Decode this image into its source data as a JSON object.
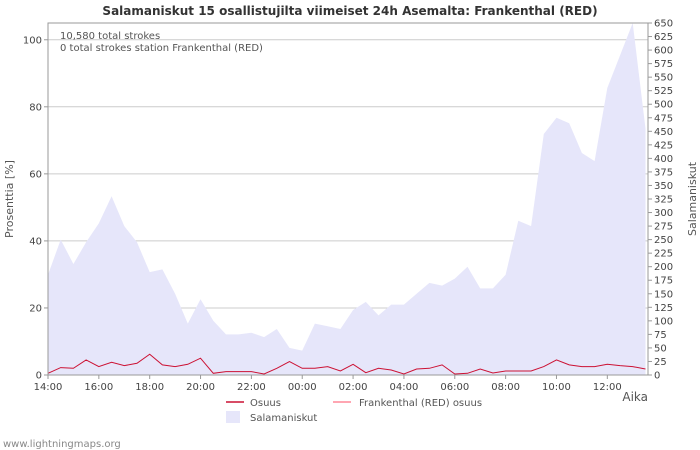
{
  "chart_data": {
    "type": "area",
    "title": "Salamaniskut 15 osallistujilta viimeiset 24h Asemalta: Frankenthal (RED)",
    "annotations": [
      "10,580 total strokes",
      "0 total strokes station Frankenthal (RED)"
    ],
    "ylabel_left": "Prosenttia   [%]",
    "ylabel_right": "Salamaniskut",
    "xlabel": "Aika",
    "ylim_left": [
      0,
      105
    ],
    "ylim_right": [
      0,
      650
    ],
    "yticks_left": [
      "0",
      "20",
      "40",
      "60",
      "80",
      "100"
    ],
    "yticks_right": [
      "0",
      "25",
      "50",
      "75",
      "100",
      "125",
      "150",
      "175",
      "200",
      "225",
      "250",
      "275",
      "300",
      "325",
      "350",
      "375",
      "400",
      "425",
      "450",
      "475",
      "500",
      "525",
      "550",
      "575",
      "600",
      "625",
      "650"
    ],
    "x_range_hours": [
      0,
      23.6
    ],
    "xticks": [
      {
        "label": "14:00",
        "hour": 0
      },
      {
        "label": "16:00",
        "hour": 2
      },
      {
        "label": "18:00",
        "hour": 4
      },
      {
        "label": "20:00",
        "hour": 6
      },
      {
        "label": "22:00",
        "hour": 8
      },
      {
        "label": "00:00",
        "hour": 10
      },
      {
        "label": "02:00",
        "hour": 12
      },
      {
        "label": "04:00",
        "hour": 14
      },
      {
        "label": "06:00",
        "hour": 16
      },
      {
        "label": "08:00",
        "hour": 18
      },
      {
        "label": "10:00",
        "hour": 20
      },
      {
        "label": "12:00",
        "hour": 22
      }
    ],
    "x_hours": [
      0,
      0.5,
      1,
      1.5,
      2,
      2.5,
      3,
      3.5,
      4,
      4.5,
      5,
      5.5,
      6,
      6.5,
      7,
      7.5,
      8,
      8.5,
      9,
      9.5,
      10,
      10.5,
      11,
      11.5,
      12,
      12.5,
      13,
      13.5,
      14,
      14.5,
      15,
      15.5,
      16,
      16.5,
      17,
      17.5,
      18,
      18.5,
      19,
      19.5,
      20,
      20.5,
      21,
      21.5,
      22,
      22.5,
      23,
      23.5
    ],
    "series": [
      {
        "name": "Salamaniskut",
        "axis": "right",
        "color": "#e6e6fa",
        "values": [
          185,
          250,
          205,
          245,
          280,
          330,
          275,
          245,
          190,
          195,
          150,
          95,
          140,
          100,
          75,
          75,
          78,
          70,
          85,
          50,
          45,
          95,
          90,
          85,
          120,
          135,
          110,
          130,
          130,
          150,
          170,
          165,
          178,
          200,
          160,
          160,
          185,
          285,
          275,
          445,
          475,
          465,
          410,
          395,
          530,
          590,
          650,
          455
        ]
      },
      {
        "name": "Osuus",
        "axis": "left",
        "color": "#cc1133",
        "values": [
          0.5,
          2.2,
          2.0,
          4.5,
          2.5,
          3.8,
          2.8,
          3.5,
          6.2,
          3.0,
          2.5,
          3.2,
          5.0,
          0.5,
          1.0,
          1.0,
          1.0,
          0.3,
          2.0,
          4.0,
          2.0,
          2.0,
          2.5,
          1.2,
          3.2,
          0.7,
          2.0,
          1.5,
          0.3,
          1.8,
          2.0,
          3.0,
          0.3,
          0.5,
          1.8,
          0.6,
          1.2,
          1.2,
          1.2,
          2.5,
          4.5,
          3.0,
          2.5,
          2.5,
          3.2,
          2.8,
          2.5,
          1.8
        ]
      },
      {
        "name": "Frankenthal (RED) osuus",
        "axis": "left",
        "color": "#ff8899",
        "values": []
      }
    ],
    "legend": [
      "Osuus",
      "Frankenthal (RED) osuus",
      "Salamaniskut"
    ],
    "legend_position": "bottom",
    "grid": true
  },
  "footer": "www.lightningmaps.org"
}
